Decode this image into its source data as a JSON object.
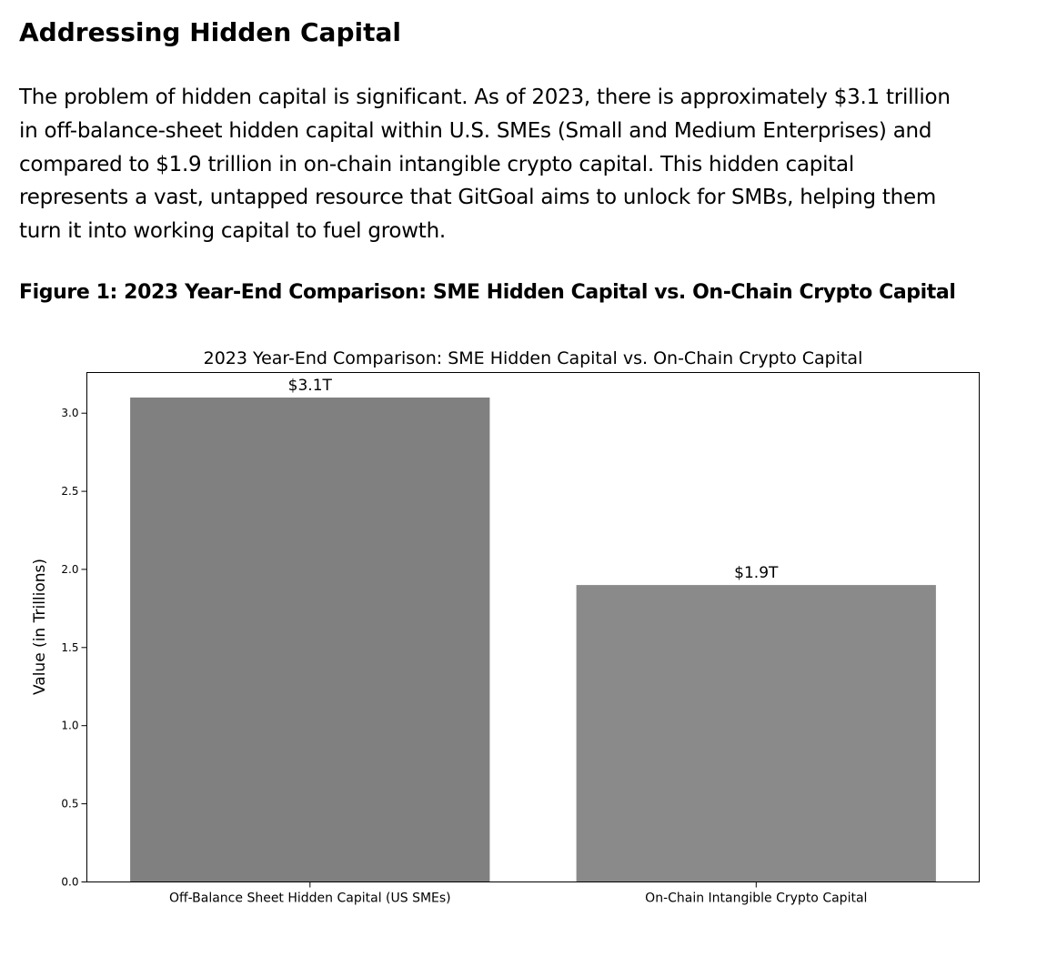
{
  "document": {
    "heading": "Addressing Hidden Capital",
    "paragraph": "The problem of hidden capital is significant. As of 2023, there is approximately $3.1 trillion in off-balance-sheet hidden capital within U.S. SMEs (Small and Medium Enterprises) and compared to $1.9 trillion in on-chain intangible crypto capital. This hidden capital represents a vast, untapped resource that GitGoal aims to unlock for SMBs, helping them turn it into working capital to fuel growth.",
    "figure_caption": "Figure 1: 2023 Year-End Comparison: SME Hidden Capital vs. On-Chain Crypto Capital"
  },
  "chart_data": {
    "type": "bar",
    "title": "2023 Year-End Comparison: SME Hidden Capital vs. On-Chain Crypto Capital",
    "xlabel": "",
    "ylabel": "Value (in Trillions)",
    "categories": [
      "Off-Balance Sheet Hidden Capital (US SMEs)",
      "On-Chain Intangible Crypto Capital"
    ],
    "values": [
      3.1,
      1.9
    ],
    "bar_labels": [
      "$3.1T",
      "$1.9T"
    ],
    "bar_colors": [
      "#808080",
      "#8a8a8a"
    ],
    "ylim": [
      0,
      3.26
    ],
    "yticks": [
      0.0,
      0.5,
      1.0,
      1.5,
      2.0,
      2.5,
      3.0
    ],
    "ytick_labels": [
      "0.0",
      "0.5",
      "1.0",
      "1.5",
      "2.0",
      "2.5",
      "3.0"
    ],
    "grid": false,
    "legend": "none"
  }
}
